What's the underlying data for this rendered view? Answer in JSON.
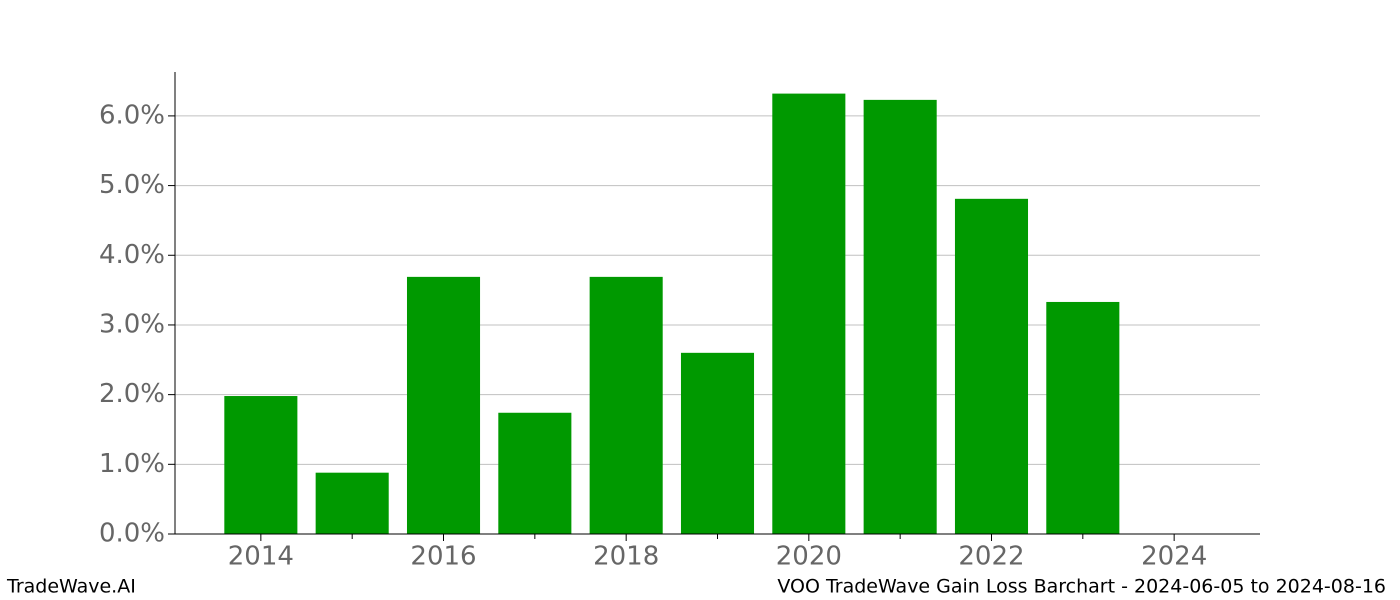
{
  "chart_data": {
    "type": "bar",
    "x": [
      2014,
      2015,
      2016,
      2017,
      2018,
      2019,
      2020,
      2021,
      2022,
      2023,
      2024
    ],
    "values": [
      1.98,
      0.88,
      3.69,
      1.74,
      3.69,
      2.6,
      6.32,
      6.23,
      4.81,
      3.33,
      0
    ],
    "color": "#009900",
    "bar_width": 0.8,
    "xlim": [
      2013.06,
      2024.94
    ],
    "xticks": [
      2014,
      2016,
      2018,
      2020,
      2022,
      2024
    ],
    "xminor_ticks": [
      2015,
      2017,
      2019,
      2021,
      2023
    ],
    "ylim": [
      0,
      6.63
    ],
    "yticks": [
      {
        "value": 0,
        "label": "0.0%"
      },
      {
        "value": 1,
        "label": "1.0%"
      },
      {
        "value": 2,
        "label": "2.0%"
      },
      {
        "value": 3,
        "label": "3.0%"
      },
      {
        "value": 4,
        "label": "4.0%"
      },
      {
        "value": 5,
        "label": "5.0%"
      },
      {
        "value": 6,
        "label": "6.0%"
      }
    ],
    "grid": true,
    "footer_left": "TradeWave.AI",
    "footer_right": "VOO TradeWave Gain Loss Barchart - 2024-06-05 to 2024-08-16"
  }
}
